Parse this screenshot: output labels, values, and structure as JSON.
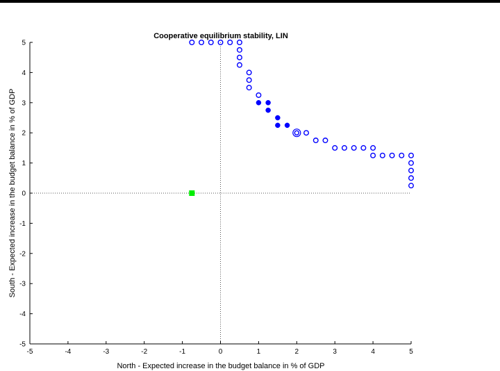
{
  "chart_data": {
    "type": "scatter",
    "title": "Cooperative equilibrium stability, LIN",
    "xlabel": "North - Expected increase in the budget balance in % of GDP",
    "ylabel": "South - Expected increase in the budget balance in % of GDP",
    "xlim": [
      -5,
      5
    ],
    "ylim": [
      -5,
      5
    ],
    "xticks": [
      -5,
      -4,
      -3,
      -2,
      -1,
      0,
      1,
      2,
      3,
      4,
      5
    ],
    "yticks": [
      -5,
      -4,
      -3,
      -2,
      -1,
      0,
      1,
      2,
      3,
      4,
      5
    ],
    "grid": false,
    "reference_lines": {
      "x": 0,
      "y": 0,
      "style": "dotted"
    },
    "series": [
      {
        "marker": "open-circle",
        "color": "#0000ff",
        "points": [
          [
            -0.75,
            5
          ],
          [
            -0.5,
            5
          ],
          [
            -0.25,
            5
          ],
          [
            0,
            5
          ],
          [
            0.25,
            5
          ],
          [
            0.5,
            5
          ],
          [
            0.5,
            4.75
          ],
          [
            0.5,
            4.5
          ],
          [
            0.5,
            4.25
          ],
          [
            0.75,
            4
          ],
          [
            0.75,
            3.75
          ],
          [
            0.75,
            3.5
          ],
          [
            1,
            3.25
          ],
          [
            2.25,
            2
          ],
          [
            2.5,
            1.75
          ],
          [
            2.75,
            1.75
          ],
          [
            3,
            1.5
          ],
          [
            3.25,
            1.5
          ],
          [
            3.5,
            1.5
          ],
          [
            3.75,
            1.5
          ],
          [
            4,
            1.5
          ],
          [
            4,
            1.25
          ],
          [
            4.25,
            1.25
          ],
          [
            4.5,
            1.25
          ],
          [
            4.75,
            1.25
          ],
          [
            5,
            1.25
          ],
          [
            5,
            1
          ],
          [
            5,
            0.75
          ],
          [
            5,
            0.5
          ],
          [
            5,
            0.25
          ]
        ]
      },
      {
        "marker": "filled-circle",
        "color": "#0000ff",
        "points": [
          [
            1,
            3
          ],
          [
            1.25,
            3
          ],
          [
            1.25,
            2.75
          ],
          [
            1.5,
            2.5
          ],
          [
            1.5,
            2.25
          ],
          [
            1.75,
            2.25
          ]
        ]
      },
      {
        "marker": "double-circle",
        "color": "#0000ff",
        "points": [
          [
            2,
            2
          ]
        ]
      },
      {
        "marker": "filled-square",
        "color": "#00ee00",
        "points": [
          [
            -0.75,
            0
          ]
        ]
      }
    ]
  }
}
